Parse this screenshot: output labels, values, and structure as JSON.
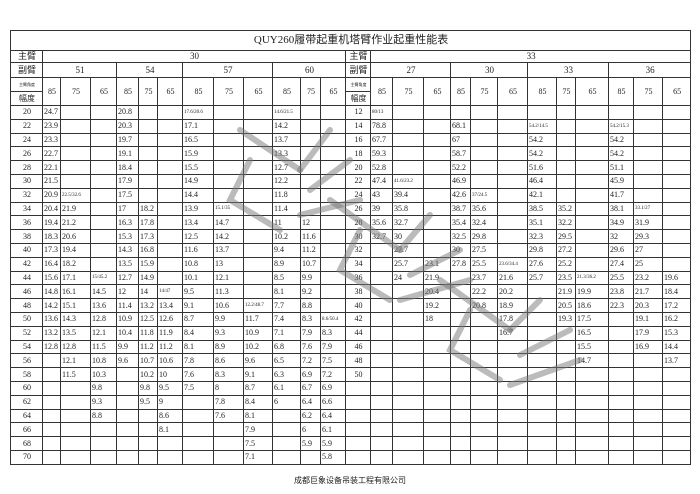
{
  "title": "QUY260履带起重机塔臂作业起重性能表",
  "main_boom_label": "主臂",
  "jib_label": "副臂",
  "angle_label": "主臂角度",
  "radius_label": "幅度",
  "left": {
    "main_boom": "30",
    "jibs": [
      "51",
      "54",
      "57",
      "60"
    ],
    "angles": [
      "85",
      "75",
      "65"
    ]
  },
  "right": {
    "main_boom": "33",
    "jibs": [
      "27",
      "30",
      "33",
      "36"
    ],
    "angles": [
      "85",
      "75",
      "65"
    ]
  },
  "rows": [
    {
      "lr": "20",
      "l": [
        "24.7",
        "",
        "",
        "20.8",
        "",
        "",
        "17.6/20.6",
        "",
        "",
        "14.6/21.5",
        "",
        ""
      ],
      "rr": "12",
      "r": [
        "80/13",
        "",
        "",
        "",
        "",
        "",
        "",
        "",
        "",
        "",
        "",
        ""
      ]
    },
    {
      "lr": "22",
      "l": [
        "23.9",
        "",
        "",
        "20.3",
        "",
        "",
        "17.1",
        "",
        "",
        "14.2",
        "",
        ""
      ],
      "rr": "14",
      "r": [
        "78.8",
        "",
        "",
        "68.1",
        "",
        "",
        "54.2/14.5",
        "",
        "",
        "54.2/15.3",
        "",
        ""
      ]
    },
    {
      "lr": "24",
      "l": [
        "23.3",
        "",
        "",
        "19.7",
        "",
        "",
        "16.5",
        "",
        "",
        "13.7",
        "",
        ""
      ],
      "rr": "16",
      "r": [
        "67.7",
        "",
        "",
        "67",
        "",
        "",
        "54.2",
        "",
        "",
        "54.2",
        "",
        ""
      ]
    },
    {
      "lr": "26",
      "l": [
        "22.7",
        "",
        "",
        "19.1",
        "",
        "",
        "15.9",
        "",
        "",
        "13.3",
        "",
        ""
      ],
      "rr": "18",
      "r": [
        "59.3",
        "",
        "",
        "58.7",
        "",
        "",
        "54.2",
        "",
        "",
        "54.2",
        "",
        ""
      ]
    },
    {
      "lr": "28",
      "l": [
        "22.1",
        "",
        "",
        "18.4",
        "",
        "",
        "15.5",
        "",
        "",
        "12.7",
        "",
        ""
      ],
      "rr": "20",
      "r": [
        "52.8",
        "",
        "",
        "52.2",
        "",
        "",
        "51.6",
        "",
        "",
        "51.1",
        "",
        ""
      ]
    },
    {
      "lr": "30",
      "l": [
        "21.5",
        "",
        "",
        "17.9",
        "",
        "",
        "14.9",
        "",
        "",
        "12.2",
        "",
        ""
      ],
      "rr": "22",
      "r": [
        "47.4",
        "41.6/23.2",
        "",
        "46.9",
        "",
        "",
        "46.4",
        "",
        "",
        "45.9",
        "",
        ""
      ]
    },
    {
      "lr": "32",
      "l": [
        "20.9",
        "22.5/32.6",
        "",
        "17.5",
        "",
        "",
        "14.4",
        "",
        "",
        "11.8",
        "",
        ""
      ],
      "rr": "24",
      "r": [
        "43",
        "39.4",
        "",
        "42.6",
        "37/24.5",
        "",
        "42.1",
        "",
        "",
        "41.7",
        "",
        ""
      ]
    },
    {
      "lr": "34",
      "l": [
        "20.4",
        "21.9",
        "",
        "17",
        "18.2",
        "",
        "13.9",
        "15.1/35",
        "",
        "11.4",
        "",
        ""
      ],
      "rr": "26",
      "r": [
        "39",
        "35.8",
        "",
        "38.7",
        "35.6",
        "",
        "38.5",
        "35.2",
        "",
        "38.1",
        "33.1/27",
        ""
      ]
    },
    {
      "lr": "36",
      "l": [
        "19.4",
        "21.2",
        "",
        "16.3",
        "17.8",
        "",
        "13.4",
        "14.7",
        "",
        "11",
        "12",
        ""
      ],
      "rr": "28",
      "r": [
        "35.6",
        "32.7",
        "",
        "35.4",
        "32.4",
        "",
        "35.1",
        "32.2",
        "",
        "34.9",
        "31.9",
        ""
      ]
    },
    {
      "lr": "38",
      "l": [
        "18.3",
        "20.6",
        "",
        "15.3",
        "17.3",
        "",
        "12.5",
        "14.2",
        "",
        "10.2",
        "11.6",
        ""
      ],
      "rr": "30",
      "r": [
        "32.7",
        "30",
        "",
        "32.5",
        "29.8",
        "",
        "32.3",
        "29.5",
        "",
        "32",
        "29.3",
        ""
      ]
    },
    {
      "lr": "40",
      "l": [
        "17.3",
        "19.4",
        "",
        "14.3",
        "16.8",
        "",
        "11.6",
        "13.7",
        "",
        "9.4",
        "11.2",
        ""
      ],
      "rr": "32",
      "r": [
        "",
        "27.7",
        "",
        "30",
        "27.5",
        "",
        "29.8",
        "27.2",
        "",
        "29.6",
        "27",
        ""
      ]
    },
    {
      "lr": "42",
      "l": [
        "16.4",
        "18.2",
        "",
        "13.5",
        "15.9",
        "",
        "10.8",
        "13",
        "",
        "8.9",
        "10.7",
        ""
      ],
      "rr": "34",
      "r": [
        "",
        "25.7",
        "23.1",
        "27.8",
        "25.5",
        "23.6/34.4",
        "27.6",
        "25.2",
        "",
        "27.4",
        "25",
        ""
      ]
    },
    {
      "lr": "44",
      "l": [
        "15.6",
        "17.1",
        "15/45.2",
        "12.7",
        "14.9",
        "",
        "10.1",
        "12.1",
        "",
        "8.5",
        "9.9",
        ""
      ],
      "rr": "36",
      "r": [
        "",
        "24",
        "21.9",
        "",
        "23.7",
        "21.6",
        "25.7",
        "23.5",
        "21.3/36.2",
        "25.5",
        "23.2",
        "19.6"
      ]
    },
    {
      "lr": "46",
      "l": [
        "14.8",
        "16.1",
        "14.5",
        "12",
        "14",
        "14/47",
        "9.5",
        "11.3",
        "",
        "8.1",
        "9.2",
        ""
      ],
      "rr": "38",
      "r": [
        "",
        "",
        "20.4",
        "",
        "22.2",
        "20.2",
        "",
        "21.9",
        "19.9",
        "23.8",
        "21.7",
        "18.4"
      ]
    },
    {
      "lr": "48",
      "l": [
        "14.2",
        "15.1",
        "13.6",
        "11.4",
        "13.2",
        "13.4",
        "9.1",
        "10.6",
        "12.2/48.7",
        "7.7",
        "8.8",
        ""
      ],
      "rr": "40",
      "r": [
        "",
        "",
        "19.2",
        "",
        "20.8",
        "18.9",
        "",
        "20.5",
        "18.6",
        "22.3",
        "20.3",
        "17.2"
      ]
    },
    {
      "lr": "50",
      "l": [
        "13.6",
        "14.3",
        "12.8",
        "10.9",
        "12.5",
        "12.6",
        "8.7",
        "9.9",
        "11.7",
        "7.4",
        "8.3",
        "8.6/50.4"
      ],
      "rr": "42",
      "r": [
        "",
        "",
        "18",
        "",
        "",
        "17.8",
        "",
        "19.3",
        "17.5",
        "",
        "19.1",
        "16.2"
      ]
    },
    {
      "lr": "52",
      "l": [
        "13.2",
        "13.5",
        "12.1",
        "10.4",
        "11.8",
        "11.9",
        "8.4",
        "9.3",
        "10.9",
        "7.1",
        "7.9",
        "8.3"
      ],
      "rr": "44",
      "r": [
        "",
        "",
        "",
        "",
        "",
        "16.7",
        "",
        "",
        "16.5",
        "",
        "17.9",
        "15.3"
      ]
    },
    {
      "lr": "54",
      "l": [
        "12.8",
        "12.8",
        "11.5",
        "9.9",
        "11.2",
        "11.2",
        "8.1",
        "8.9",
        "10.2",
        "6.8",
        "7.6",
        "7.9"
      ],
      "rr": "46",
      "r": [
        "",
        "",
        "",
        "",
        "",
        "",
        "",
        "",
        "15.5",
        "",
        "16.9",
        "14.4"
      ]
    },
    {
      "lr": "56",
      "l": [
        "",
        "12.1",
        "10.8",
        "9.6",
        "10.7",
        "10.6",
        "7.8",
        "8.6",
        "9.6",
        "6.5",
        "7.2",
        "7.5"
      ],
      "rr": "48",
      "r": [
        "",
        "",
        "",
        "",
        "",
        "",
        "",
        "",
        "14.7",
        "",
        "",
        "13.7"
      ]
    },
    {
      "lr": "58",
      "l": [
        "",
        "11.5",
        "10.3",
        "",
        "10.2",
        "10",
        "7.6",
        "8.3",
        "9.1",
        "6.3",
        "6.9",
        "7.2"
      ],
      "rr": "50",
      "r": [
        "",
        "",
        "",
        "",
        "",
        "",
        "",
        "",
        "",
        "",
        "",
        ""
      ]
    },
    {
      "lr": "60",
      "l": [
        "",
        "",
        "9.8",
        "",
        "9.8",
        "9.5",
        "7.5",
        "8",
        "8.7",
        "6.1",
        "6.7",
        "6.9"
      ],
      "rr": "",
      "r": [
        "",
        "",
        "",
        "",
        "",
        "",
        "",
        "",
        "",
        "",
        "",
        ""
      ]
    },
    {
      "lr": "62",
      "l": [
        "",
        "",
        "9.3",
        "",
        "9.5",
        "9",
        "",
        "7.8",
        "8.4",
        "6",
        "6.4",
        "6.6"
      ],
      "rr": "",
      "r": [
        "",
        "",
        "",
        "",
        "",
        "",
        "",
        "",
        "",
        "",
        "",
        ""
      ]
    },
    {
      "lr": "64",
      "l": [
        "",
        "",
        "8.8",
        "",
        "",
        "8.6",
        "",
        "7.6",
        "8.1",
        "",
        "6.2",
        "6.4"
      ],
      "rr": "",
      "r": [
        "",
        "",
        "",
        "",
        "",
        "",
        "",
        "",
        "",
        "",
        "",
        ""
      ]
    },
    {
      "lr": "66",
      "l": [
        "",
        "",
        "",
        "",
        "",
        "8.1",
        "",
        "",
        "7.9",
        "",
        "6",
        "6.1"
      ],
      "rr": "",
      "r": [
        "",
        "",
        "",
        "",
        "",
        "",
        "",
        "",
        "",
        "",
        "",
        ""
      ]
    },
    {
      "lr": "68",
      "l": [
        "",
        "",
        "",
        "",
        "",
        "",
        "",
        "",
        "7.5",
        "",
        "5.9",
        "5.9"
      ],
      "rr": "",
      "r": [
        "",
        "",
        "",
        "",
        "",
        "",
        "",
        "",
        "",
        "",
        "",
        ""
      ]
    },
    {
      "lr": "70",
      "l": [
        "",
        "",
        "",
        "",
        "",
        "",
        "",
        "",
        "7.1",
        "",
        "",
        "5.8"
      ],
      "rr": "",
      "r": [
        "",
        "",
        "",
        "",
        "",
        "",
        "",
        "",
        "",
        "",
        "",
        ""
      ]
    }
  ],
  "watermark": "成都巨象吊装",
  "footer": "成都巨象设备吊装工程有限公司"
}
